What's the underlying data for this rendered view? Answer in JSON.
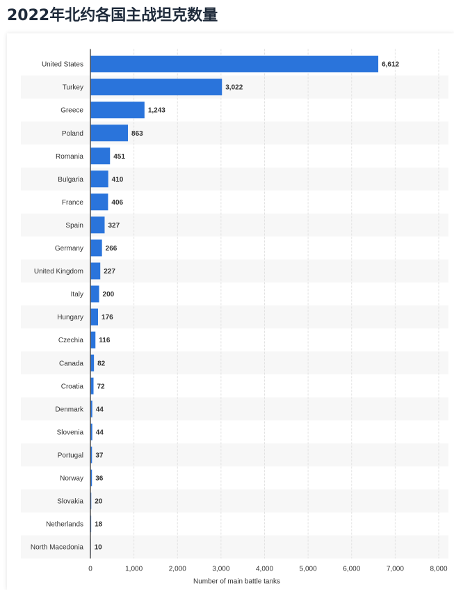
{
  "chart_data": {
    "type": "bar",
    "orientation": "horizontal",
    "title": "2022年北约各国主战坦克数量",
    "x_label": "Number of main battle tanks",
    "categories": [
      "United States",
      "Turkey",
      "Greece",
      "Poland",
      "Romania",
      "Bulgaria",
      "France",
      "Spain",
      "Germany",
      "United Kingdom",
      "Italy",
      "Hungary",
      "Czechia",
      "Canada",
      "Croatia",
      "Denmark",
      "Slovenia",
      "Portugal",
      "Norway",
      "Slovakia",
      "Netherlands",
      "North Macedonia"
    ],
    "values": [
      6612,
      3022,
      1243,
      863,
      451,
      410,
      406,
      327,
      266,
      227,
      200,
      176,
      116,
      82,
      72,
      44,
      44,
      37,
      36,
      20,
      18,
      10
    ],
    "value_labels": [
      "6,612",
      "3,022",
      "1,243",
      "863",
      "451",
      "410",
      "406",
      "327",
      "266",
      "227",
      "200",
      "176",
      "116",
      "82",
      "72",
      "44",
      "44",
      "37",
      "36",
      "20",
      "18",
      "10"
    ],
    "color": "#2a74db",
    "xlim": [
      0,
      8000
    ],
    "xticks": [
      0,
      {
        "value": 1000,
        "label": "1,000"
      },
      {
        "value": 2000,
        "label": "2,000"
      },
      {
        "value": 3000,
        "label": "3,000"
      },
      {
        "value": 4000,
        "label": "4,000"
      },
      {
        "value": 5000,
        "label": "5,000"
      },
      {
        "value": 6000,
        "label": "6,000"
      },
      {
        "value": 7000,
        "label": "7,000"
      },
      {
        "value": 8000,
        "label": "8,000"
      }
    ],
    "grid": true
  }
}
